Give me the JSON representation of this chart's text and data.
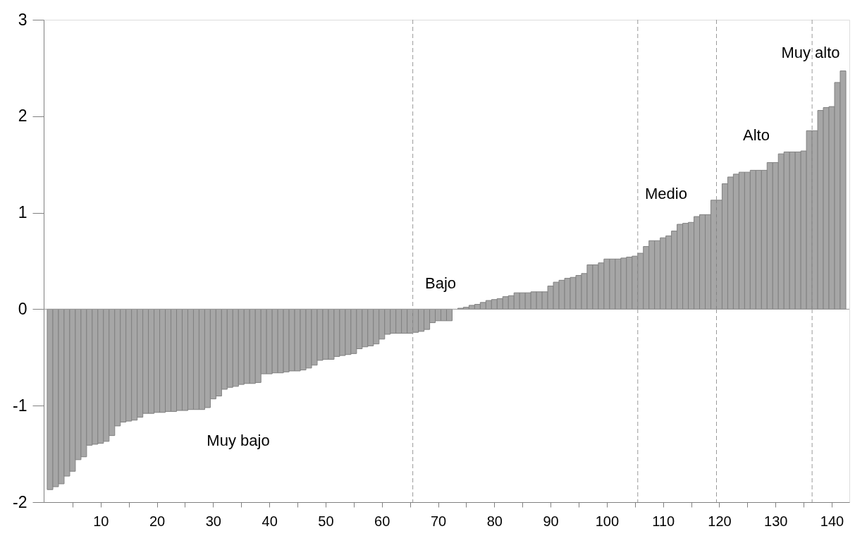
{
  "chart_data": {
    "type": "bar",
    "x": [
      1,
      2,
      3,
      4,
      5,
      6,
      7,
      8,
      9,
      10,
      11,
      12,
      13,
      14,
      15,
      16,
      17,
      18,
      19,
      20,
      21,
      22,
      23,
      24,
      25,
      26,
      27,
      28,
      29,
      30,
      31,
      32,
      33,
      34,
      35,
      36,
      37,
      38,
      39,
      40,
      41,
      42,
      43,
      44,
      45,
      46,
      47,
      48,
      49,
      50,
      51,
      52,
      53,
      54,
      55,
      56,
      57,
      58,
      59,
      60,
      61,
      62,
      63,
      64,
      65,
      66,
      67,
      68,
      69,
      70,
      71,
      72,
      73,
      74,
      75,
      76,
      77,
      78,
      79,
      80,
      81,
      82,
      83,
      84,
      85,
      86,
      87,
      88,
      89,
      90,
      91,
      92,
      93,
      94,
      95,
      96,
      97,
      98,
      99,
      100,
      101,
      102,
      103,
      104,
      105,
      106,
      107,
      108,
      109,
      110,
      111,
      112,
      113,
      114,
      115,
      116,
      117,
      118,
      119,
      120,
      121,
      122,
      123,
      124,
      125,
      126,
      127,
      128,
      129,
      130,
      131,
      132,
      133,
      134,
      135,
      136,
      137,
      138,
      139,
      140,
      141,
      142
    ],
    "series": [
      {
        "color": "#a6a6a6",
        "values": [
          -1.87,
          -1.84,
          -1.81,
          -1.73,
          -1.68,
          -1.56,
          -1.53,
          -1.41,
          -1.4,
          -1.39,
          -1.37,
          -1.31,
          -1.21,
          -1.17,
          -1.16,
          -1.15,
          -1.12,
          -1.08,
          -1.08,
          -1.07,
          -1.07,
          -1.06,
          -1.06,
          -1.05,
          -1.05,
          -1.04,
          -1.04,
          -1.04,
          -1.02,
          -0.93,
          -0.9,
          -0.83,
          -0.81,
          -0.8,
          -0.78,
          -0.77,
          -0.77,
          -0.76,
          -0.67,
          -0.67,
          -0.66,
          -0.66,
          -0.65,
          -0.64,
          -0.64,
          -0.63,
          -0.61,
          -0.58,
          -0.53,
          -0.52,
          -0.52,
          -0.49,
          -0.48,
          -0.47,
          -0.46,
          -0.41,
          -0.39,
          -0.38,
          -0.36,
          -0.31,
          -0.26,
          -0.25,
          -0.25,
          -0.25,
          -0.25,
          -0.24,
          -0.23,
          -0.21,
          -0.14,
          -0.12,
          -0.12,
          -0.12,
          null,
          0.01,
          0.02,
          0.04,
          0.05,
          0.07,
          0.09,
          0.1,
          0.11,
          0.13,
          0.14,
          0.17,
          0.17,
          0.17,
          0.18,
          0.18,
          0.18,
          0.24,
          0.28,
          0.3,
          0.32,
          0.33,
          0.35,
          0.37,
          0.46,
          0.46,
          0.48,
          0.52,
          0.52,
          0.52,
          0.53,
          0.54,
          0.55,
          0.58,
          0.65,
          0.71,
          0.71,
          0.74,
          0.76,
          0.81,
          0.88,
          0.89,
          0.9,
          0.96,
          0.98,
          0.98,
          1.13,
          1.13,
          1.3,
          1.37,
          1.4,
          1.42,
          1.42,
          1.44,
          1.44,
          1.44,
          1.52,
          1.52,
          1.61,
          1.63,
          1.63,
          1.63,
          1.64,
          1.85,
          1.85,
          2.06,
          2.09,
          2.1,
          2.35,
          2.47
        ]
      }
    ],
    "xlim": [
      0.5,
      142.5
    ],
    "xticks": [
      {
        "value": 5,
        "label": null
      },
      10,
      {
        "value": 15,
        "label": null
      },
      20,
      {
        "value": 25,
        "label": null
      },
      30,
      {
        "value": 35,
        "label": null
      },
      40,
      {
        "value": 45,
        "label": null
      },
      50,
      {
        "value": 55,
        "label": null
      },
      60,
      {
        "value": 65,
        "label": null
      },
      70,
      {
        "value": 75,
        "label": null
      },
      80,
      {
        "value": 85,
        "label": null
      },
      90,
      {
        "value": 95,
        "label": null
      },
      100,
      {
        "value": 105,
        "label": null
      },
      110,
      {
        "value": 115,
        "label": null
      },
      120,
      {
        "value": 125,
        "label": null
      },
      130,
      {
        "value": 135,
        "label": null
      },
      140
    ],
    "ylim": [
      -2,
      3
    ],
    "yticks": [
      -2,
      -1,
      0,
      1,
      2,
      3
    ],
    "grid": false,
    "ref_lines": [
      {
        "axis": "x",
        "value": 65.5,
        "color": "#999999",
        "line_style": "dashed"
      },
      {
        "axis": "x",
        "value": 105.5,
        "color": "#999999",
        "line_style": "dashed"
      },
      {
        "axis": "x",
        "value": 119.5,
        "color": "#999999",
        "line_style": "dashed"
      },
      {
        "axis": "x",
        "value": 136.5,
        "color": "#999999",
        "line_style": "dashed"
      },
      {
        "axis": "y",
        "value": 0,
        "color": "#999999",
        "line_style": "solid"
      }
    ],
    "annotations": [
      "Muy bajo",
      "Bajo",
      "Medio",
      "Alto",
      "Muy alto"
    ]
  }
}
